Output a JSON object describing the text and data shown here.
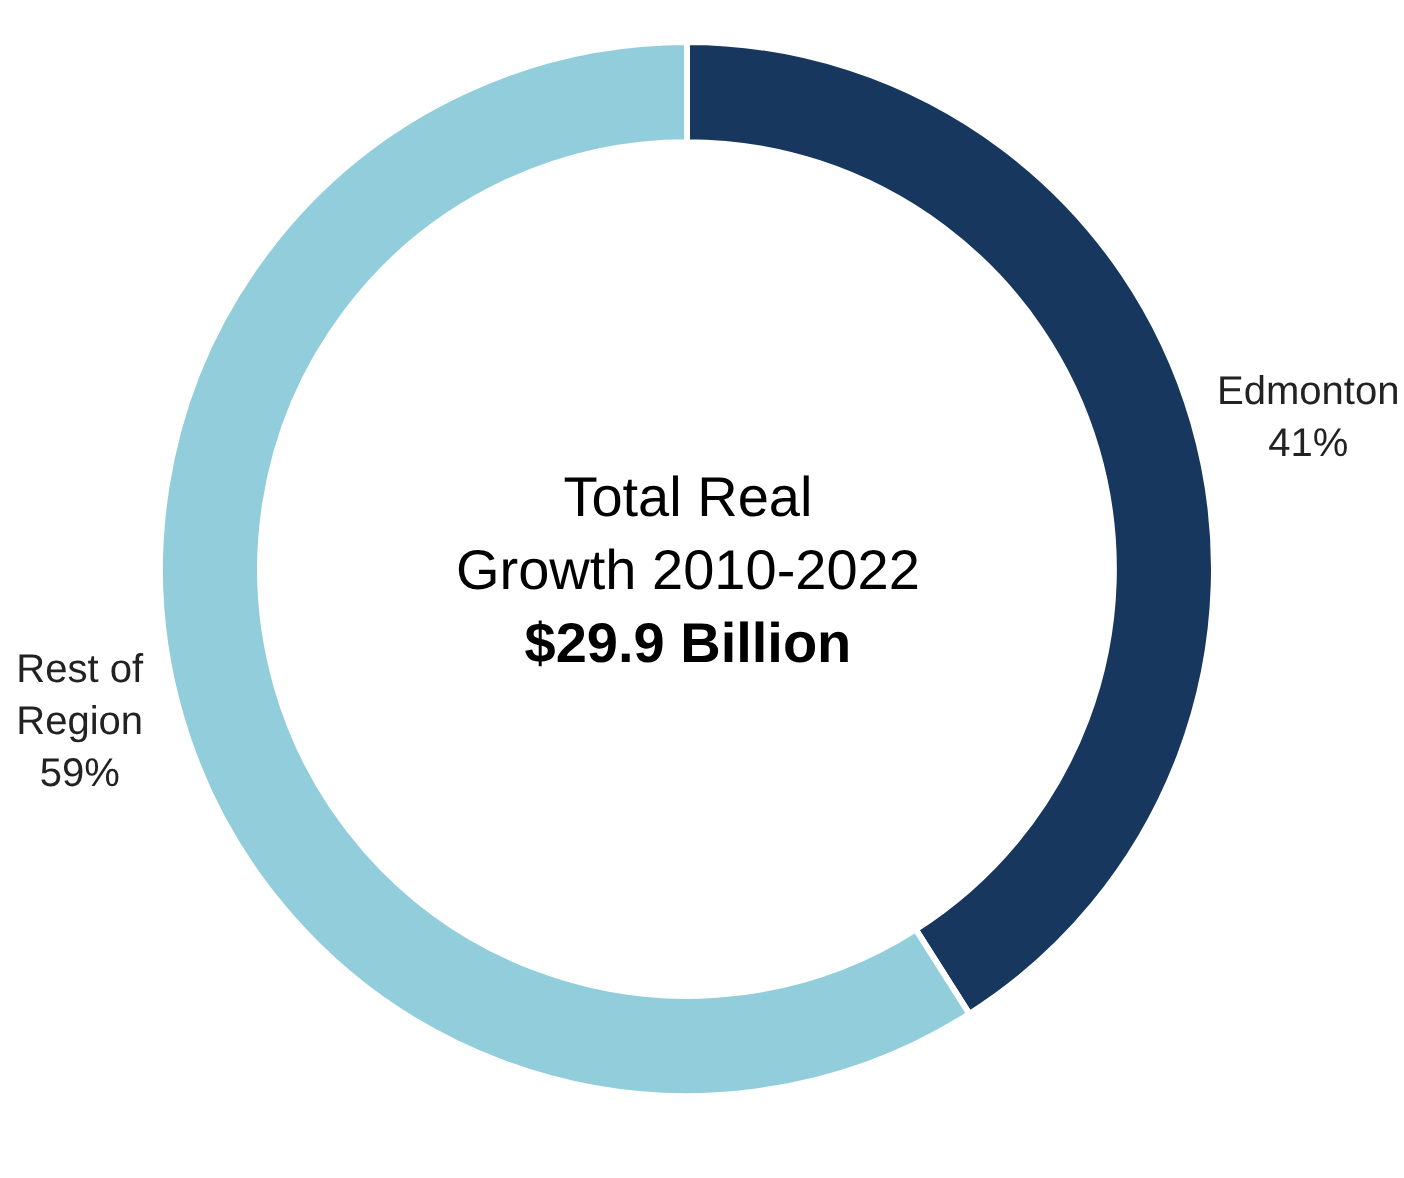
{
  "chart_data": {
    "type": "donut",
    "title": "Total Real Growth 2010-2022",
    "subtitle": "$29.9 Billion",
    "categories": [
      "Edmonton",
      "Rest of Region"
    ],
    "values": [
      41,
      59
    ],
    "value_labels": [
      "41%",
      "59%"
    ],
    "colors": [
      "#17375e",
      "#92cddc"
    ]
  }
}
